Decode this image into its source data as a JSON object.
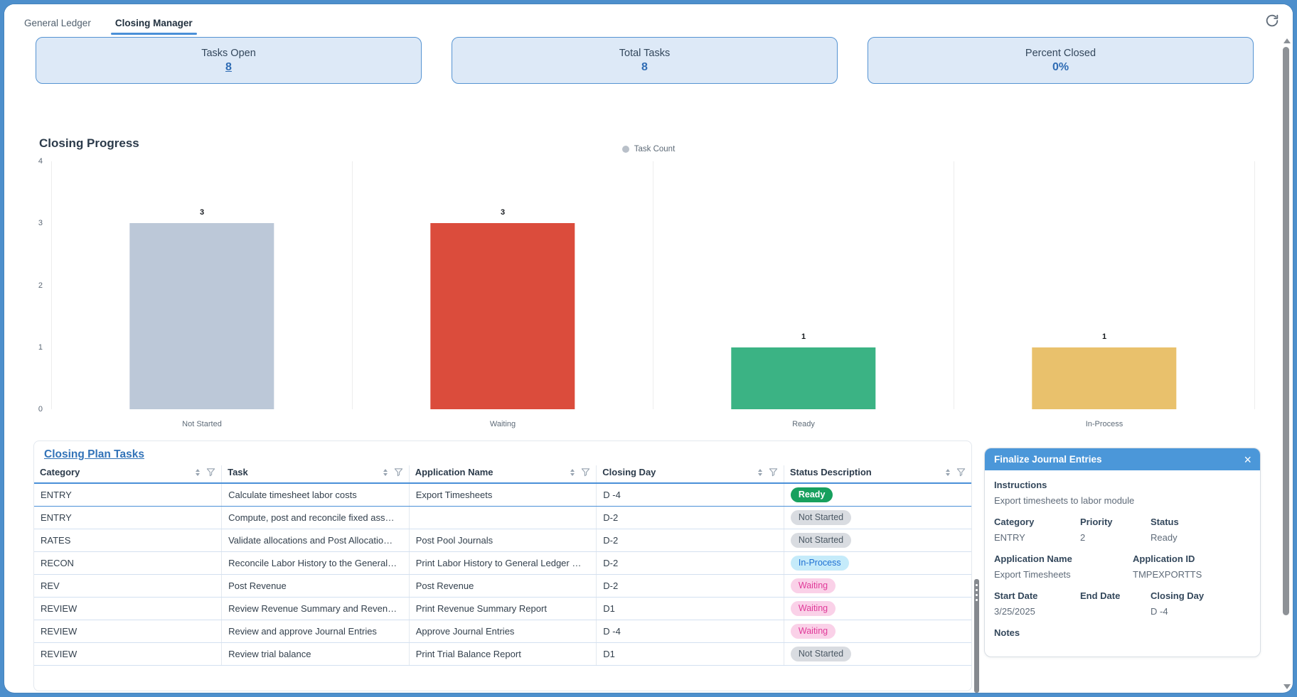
{
  "window": {
    "tabs": [
      {
        "label": "General Ledger",
        "active": false
      },
      {
        "label": "Closing Manager",
        "active": true
      }
    ]
  },
  "summary_cards": [
    {
      "label": "Tasks Open",
      "value": "8",
      "link": true
    },
    {
      "label": "Total Tasks",
      "value": "8",
      "link": false
    },
    {
      "label": "Percent Closed",
      "value": "0%",
      "link": false
    }
  ],
  "chart": {
    "title": "Closing Progress",
    "legend_label": "Task Count"
  },
  "chart_data": {
    "type": "bar",
    "title": "Closing Progress",
    "categories": [
      "Not Started",
      "Waiting",
      "Ready",
      "In-Process"
    ],
    "values": [
      3,
      3,
      1,
      1
    ],
    "series_name": "Task Count",
    "xlabel": "",
    "ylabel": "",
    "ylim": [
      0,
      4
    ],
    "yticks": [
      0,
      1,
      2,
      3,
      4
    ],
    "grid": "vertical-separators",
    "legend_position": "top-center",
    "bar_colors": [
      "#bcc8d8",
      "#db4c3c",
      "#3bb384",
      "#e9c16c"
    ]
  },
  "table": {
    "title": "Closing Plan Tasks",
    "columns": [
      "Category",
      "Task",
      "Application Name",
      "Closing Day",
      "Status Description"
    ],
    "rows": [
      {
        "category": "ENTRY",
        "task": "Calculate timesheet labor costs",
        "app": "Export Timesheets",
        "day": "D -4",
        "status": "Ready",
        "selected": true
      },
      {
        "category": "ENTRY",
        "task": "Compute, post and reconcile fixed ass…",
        "app": "",
        "day": "D-2",
        "status": "Not Started",
        "selected": false
      },
      {
        "category": "RATES",
        "task": "Validate allocations and Post Allocatio…",
        "app": "Post Pool Journals",
        "day": "D-2",
        "status": "Not Started",
        "selected": false
      },
      {
        "category": "RECON",
        "task": "Reconcile Labor History to the General…",
        "app": "Print Labor History to General Ledger …",
        "day": "D-2",
        "status": "In-Process",
        "selected": false
      },
      {
        "category": "REV",
        "task": "Post Revenue",
        "app": "Post Revenue",
        "day": "D-2",
        "status": "Waiting",
        "selected": false
      },
      {
        "category": "REVIEW",
        "task": "Review Revenue Summary and Reven…",
        "app": "Print Revenue Summary Report",
        "day": "D1",
        "status": "Waiting",
        "selected": false
      },
      {
        "category": "REVIEW",
        "task": "Review and approve Journal Entries",
        "app": "Approve Journal Entries",
        "day": "D -4",
        "status": "Waiting",
        "selected": false
      },
      {
        "category": "REVIEW",
        "task": "Review trial balance",
        "app": "Print Trial Balance Report",
        "day": "D1",
        "status": "Not Started",
        "selected": false
      }
    ]
  },
  "detail_panel": {
    "title": "Finalize Journal Entries",
    "instructions_label": "Instructions",
    "instructions": "Export timesheets to labor module",
    "category_label": "Category",
    "category": "ENTRY",
    "priority_label": "Priority",
    "priority": "2",
    "status_label": "Status",
    "status": "Ready",
    "app_name_label": "Application Name",
    "app_name": "Export Timesheets",
    "app_id_label": "Application ID",
    "app_id": "TMPEXPORTTS",
    "start_date_label": "Start Date",
    "start_date": "3/25/2025",
    "end_date_label": "End Date",
    "end_date": "",
    "closing_day_label": "Closing Day",
    "closing_day": "D -4",
    "notes_label": "Notes"
  },
  "colors": {
    "accent_blue": "#4a90d8",
    "frame_blue": "#4d8fcc",
    "card_bg": "#dde9f7",
    "card_border": "#5593d2",
    "panel_header": "#4b97d9",
    "pill_ready_bg": "#17a05e",
    "pill_not_started_bg": "#d9dce1",
    "pill_in_process_bg": "#c5ebfa",
    "pill_in_process_text": "#1d6fd3",
    "pill_waiting_bg": "#fad1e8",
    "pill_waiting_text": "#e03a99"
  }
}
